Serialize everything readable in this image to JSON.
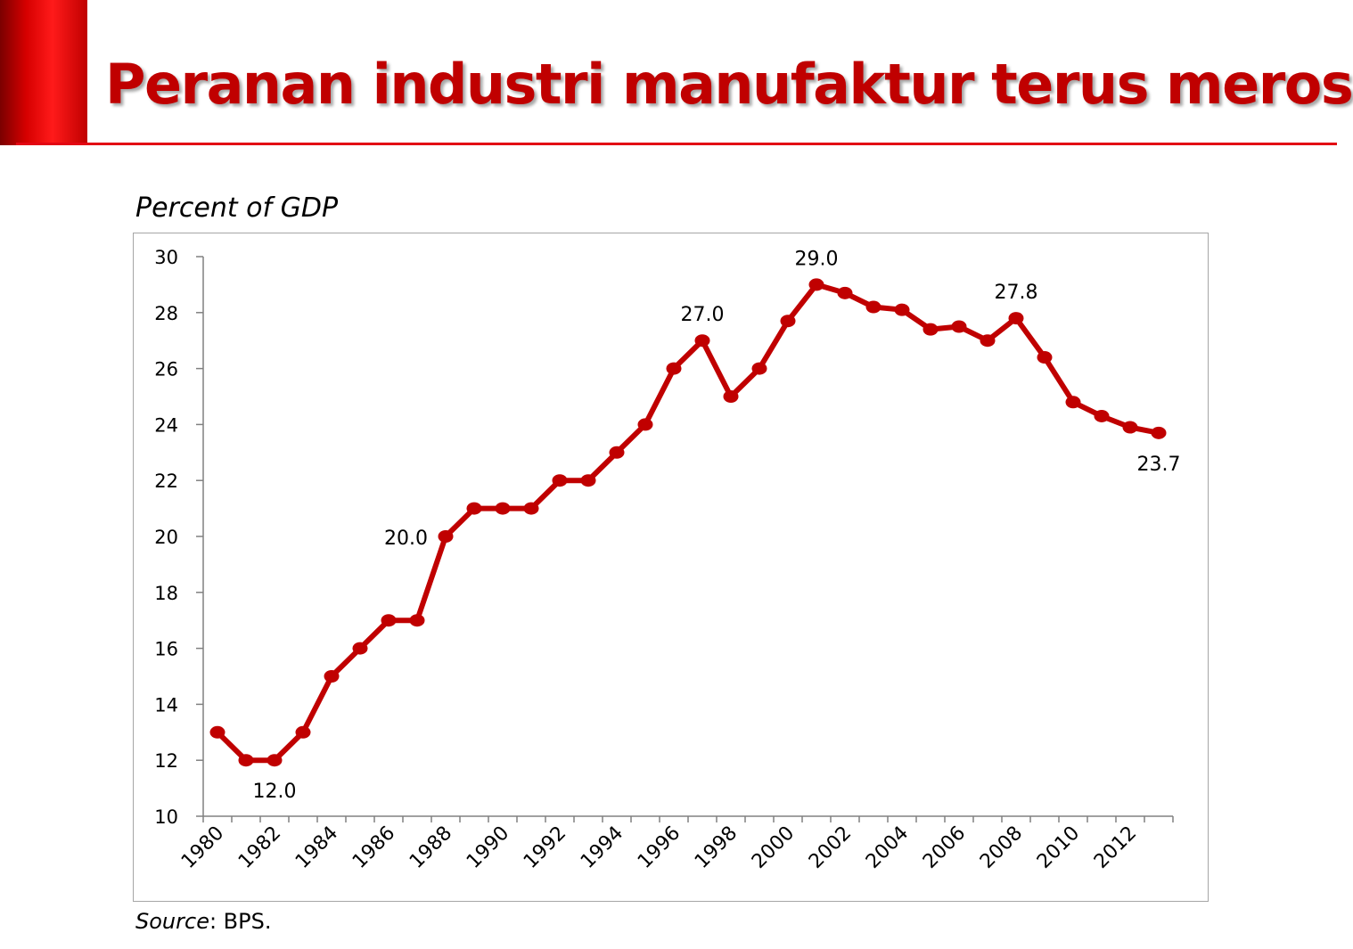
{
  "slide": {
    "title": "Peranan industri manufaktur terus merosot",
    "accent_color": "#e30613",
    "title_color": "#c00000"
  },
  "chart_caption": "Percent of GDP",
  "source": {
    "label": "Source",
    "text": ": BPS."
  },
  "chart_data": {
    "type": "line",
    "title": "",
    "xlabel": "",
    "ylabel": "Percent of GDP",
    "ylim": [
      10,
      30
    ],
    "yticks": [
      10,
      12,
      14,
      16,
      18,
      20,
      22,
      24,
      26,
      28,
      30
    ],
    "xtick_labels": [
      "1980",
      "1982",
      "1984",
      "1986",
      "1988",
      "1990",
      "1992",
      "1994",
      "1996",
      "1998",
      "2000",
      "2002",
      "2004",
      "2006",
      "2008",
      "2010",
      "2012"
    ],
    "grid": false,
    "legend": "none",
    "line_color": "#c00000",
    "x": [
      1980,
      1981,
      1982,
      1983,
      1984,
      1985,
      1986,
      1987,
      1988,
      1989,
      1990,
      1991,
      1992,
      1993,
      1994,
      1995,
      1996,
      1997,
      1998,
      1999,
      2000,
      2001,
      2002,
      2003,
      2004,
      2005,
      2006,
      2007,
      2008,
      2009,
      2010,
      2011,
      2012,
      2013
    ],
    "series": [
      {
        "values": [
          13.0,
          12.0,
          12.0,
          13.0,
          15.0,
          16.0,
          17.0,
          17.0,
          20.0,
          21.0,
          21.0,
          21.0,
          22.0,
          22.0,
          23.0,
          24.0,
          26.0,
          27.0,
          25.0,
          26.0,
          27.7,
          29.0,
          28.7,
          28.2,
          28.1,
          27.4,
          27.5,
          27.0,
          27.8,
          26.4,
          24.8,
          24.3,
          23.9,
          23.7
        ]
      }
    ],
    "annotations": [
      {
        "x": 1982,
        "y": 12.0,
        "text": "12.0",
        "position": "below"
      },
      {
        "x": 1988,
        "y": 20.0,
        "text": "20.0",
        "position": "left"
      },
      {
        "x": 1997,
        "y": 27.0,
        "text": "27.0",
        "position": "above"
      },
      {
        "x": 2001,
        "y": 29.0,
        "text": "29.0",
        "position": "above"
      },
      {
        "x": 2008,
        "y": 27.8,
        "text": "27.8",
        "position": "above"
      },
      {
        "x": 2013,
        "y": 23.7,
        "text": "23.7",
        "position": "below"
      }
    ]
  }
}
